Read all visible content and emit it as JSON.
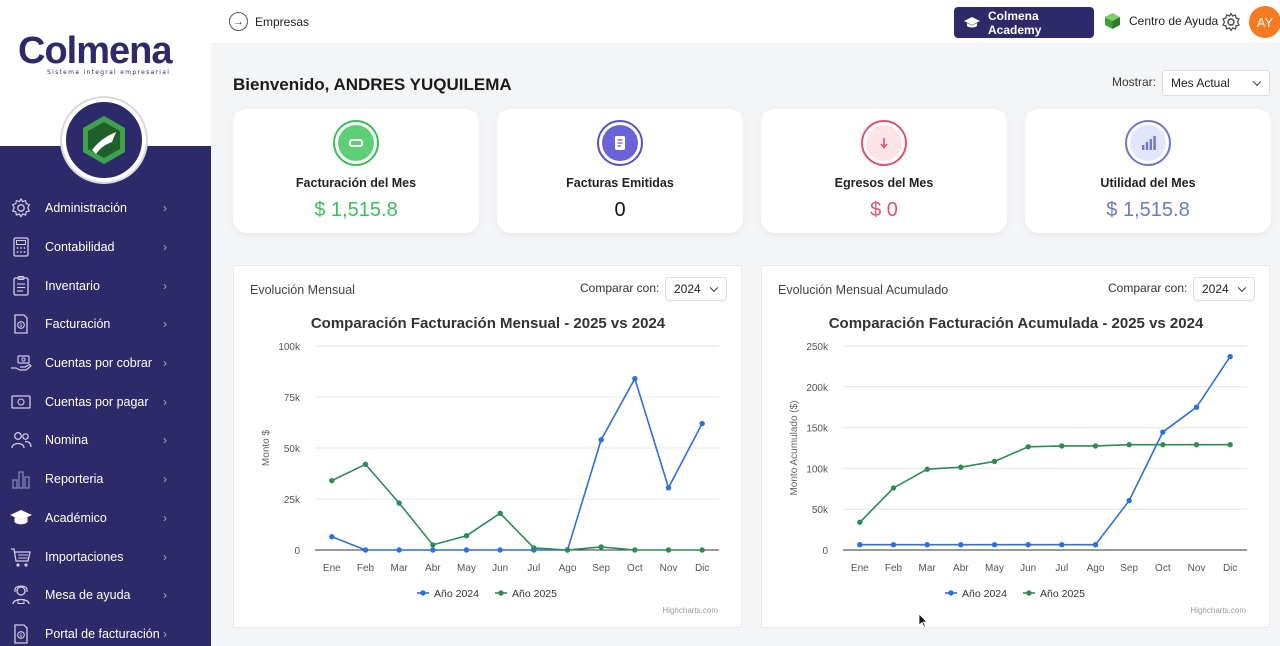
{
  "brand": {
    "name": "Colmena",
    "tagline": "Sistema integral empresarial"
  },
  "sidebar": {
    "items": [
      {
        "label": "Administración",
        "icon": "gear-icon"
      },
      {
        "label": "Contabilidad",
        "icon": "calculator-icon"
      },
      {
        "label": "Inventario",
        "icon": "clipboard-icon"
      },
      {
        "label": "Facturación",
        "icon": "invoice-icon"
      },
      {
        "label": "Cuentas por cobrar",
        "icon": "hand-money-icon"
      },
      {
        "label": "Cuentas por pagar",
        "icon": "banknote-icon"
      },
      {
        "label": "Nomina",
        "icon": "users-icon"
      },
      {
        "label": "Reporteria",
        "icon": "bar-chart-icon"
      },
      {
        "label": "Académico",
        "icon": "graduation-cap-icon"
      },
      {
        "label": "Importaciones",
        "icon": "cart-icon"
      },
      {
        "label": "Mesa de ayuda",
        "icon": "support-agent-icon"
      },
      {
        "label": "Portal de facturación",
        "icon": "portal-invoice-icon"
      }
    ]
  },
  "header": {
    "empresas": "Empresas",
    "academy": "Colmena Academy",
    "help": "Centro de Ayuda",
    "avatar": "AY"
  },
  "welcome": "Bienvenido, ANDRES YUQUILEMA",
  "filter": {
    "label": "Mostrar:",
    "value": "Mes Actual"
  },
  "kpis": [
    {
      "label": "Facturación del Mes",
      "value": "$ 1,515.8",
      "color": "#3cbf5a",
      "icon": "minus-icon"
    },
    {
      "label": "Facturas Emitidas",
      "value": "0",
      "color": "#5b54c9",
      "icon": "document-icon"
    },
    {
      "label": "Egresos del Mes",
      "value": "$ 0",
      "color": "#e0526f",
      "icon": "arrow-down-icon"
    },
    {
      "label": "Utilidad del Mes",
      "value": "$ 1,515.8",
      "color": "#6f78c6",
      "icon": "signal-bars-icon"
    }
  ],
  "panels": [
    {
      "title": "Evolución Mensual",
      "compare_label": "Comparar con:",
      "compare_value": "2024",
      "credit": "Highcharts.com"
    },
    {
      "title": "Evolución Mensual Acumulado",
      "compare_label": "Comparar con:",
      "compare_value": "2024",
      "credit": "Highcharts.com"
    }
  ],
  "chart_data": [
    {
      "type": "line",
      "title": "Comparación Facturación Mensual - 2025 vs 2024",
      "xlabel": "",
      "ylabel": "Monto $",
      "categories": [
        "Ene",
        "Feb",
        "Mar",
        "Abr",
        "May",
        "Jun",
        "Jul",
        "Ago",
        "Sep",
        "Oct",
        "Nov",
        "Dic"
      ],
      "ylim": [
        0,
        100000
      ],
      "yticks": [
        "0",
        "25k",
        "50k",
        "75k",
        "100k"
      ],
      "grid": true,
      "legend": "bottom",
      "series": [
        {
          "name": "Año 2024",
          "color": "#2f6fdb",
          "values": [
            6500,
            0,
            0,
            0,
            0,
            0,
            0,
            0,
            54000,
            84000,
            30500,
            62000
          ]
        },
        {
          "name": "Año 2025",
          "color": "#2e8b57",
          "values": [
            34000,
            42000,
            23000,
            2500,
            7000,
            18000,
            1000,
            0,
            1500,
            0,
            0,
            0
          ]
        }
      ]
    },
    {
      "type": "line",
      "title": "Comparación Facturación Acumulada - 2025 vs 2024",
      "xlabel": "",
      "ylabel": "Monto Acumulado ($)",
      "categories": [
        "Ene",
        "Feb",
        "Mar",
        "Abr",
        "May",
        "Jun",
        "Jul",
        "Ago",
        "Sep",
        "Oct",
        "Nov",
        "Dic"
      ],
      "ylim": [
        0,
        250000
      ],
      "yticks": [
        "0",
        "50k",
        "100k",
        "150k",
        "200k",
        "250k"
      ],
      "grid": true,
      "legend": "bottom",
      "series": [
        {
          "name": "Año 2024",
          "color": "#2f6fdb",
          "values": [
            6500,
            6500,
            6500,
            6500,
            6500,
            6500,
            6500,
            6500,
            60500,
            144500,
            175000,
            237000
          ]
        },
        {
          "name": "Año 2025",
          "color": "#2e8b57",
          "values": [
            34000,
            76000,
            99000,
            101500,
            108500,
            126500,
            127500,
            127500,
            129000,
            129000,
            129000,
            129000
          ]
        }
      ]
    }
  ]
}
